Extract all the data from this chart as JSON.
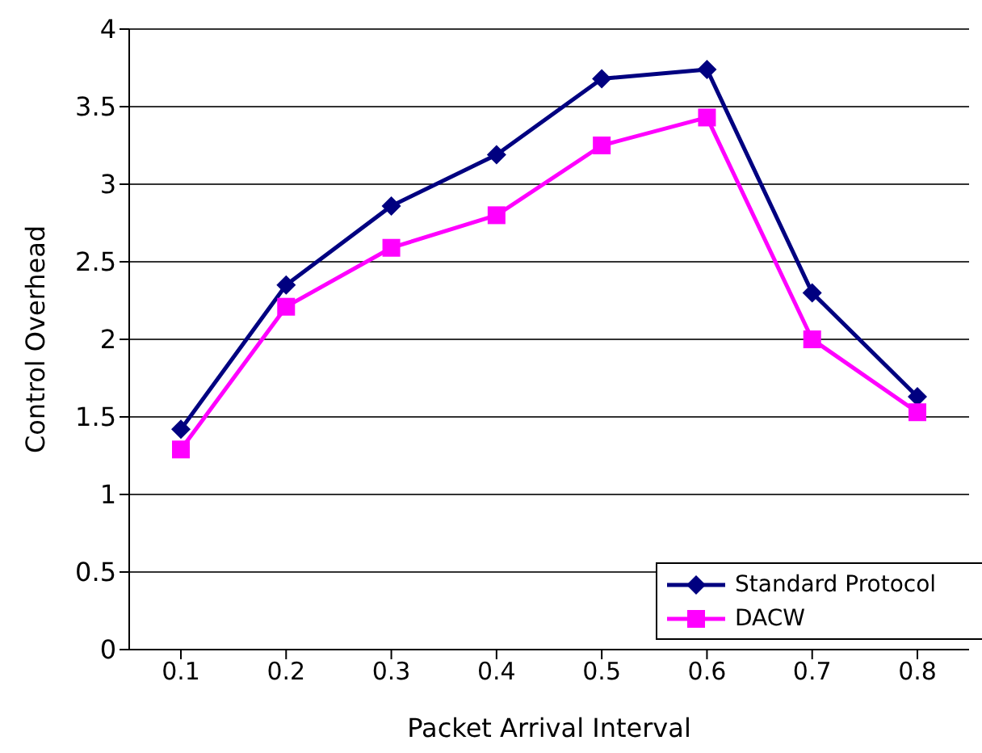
{
  "chart_data": {
    "type": "line",
    "xlabel": "Packet Arrival Interval",
    "ylabel": "Control Overhead",
    "categories": [
      "0.1",
      "0.2",
      "0.3",
      "0.4",
      "0.5",
      "0.6",
      "0.7",
      "0.8"
    ],
    "series": [
      {
        "name": "Standard Protocol",
        "color": "#000080",
        "marker": "diamond",
        "values": [
          1.42,
          2.35,
          2.86,
          3.19,
          3.68,
          3.74,
          2.3,
          1.63
        ]
      },
      {
        "name": "DACW",
        "color": "#ff00ff",
        "marker": "square",
        "values": [
          1.29,
          2.21,
          2.59,
          2.8,
          3.25,
          3.43,
          2.0,
          1.53
        ]
      }
    ],
    "ylim": [
      0,
      4
    ],
    "yticks": [
      0,
      0.5,
      1,
      1.5,
      2,
      2.5,
      3,
      3.5,
      4
    ],
    "grid": "y",
    "legend": "bottom right",
    "line_style": "solid"
  }
}
